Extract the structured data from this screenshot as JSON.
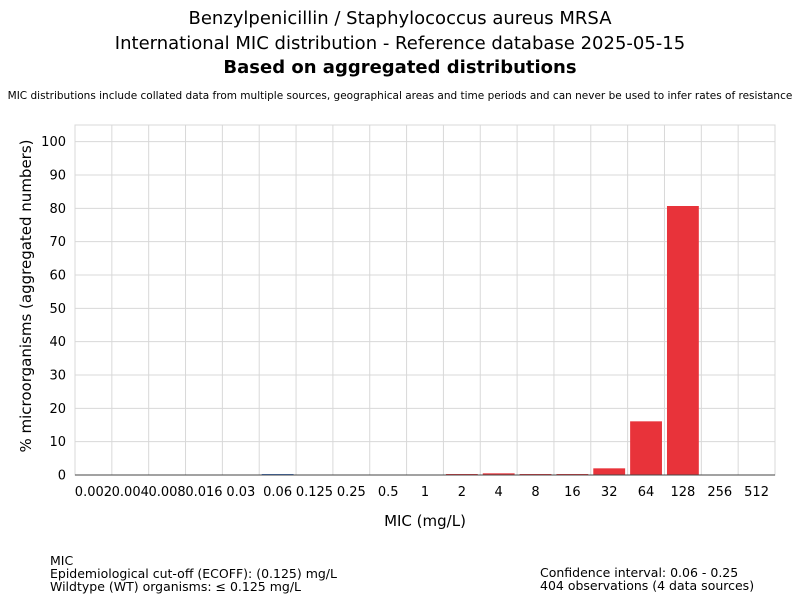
{
  "header": {
    "title_line1": "Benzylpenicillin / Staphylococcus aureus MRSA",
    "title_line2": "International MIC distribution - Reference database 2025-05-15",
    "title_line3": "Based on aggregated distributions",
    "note": "MIC distributions include collated data from multiple sources, geographical areas and time periods and can never be used to infer rates of resistance"
  },
  "footer": {
    "left": {
      "line1": "MIC",
      "line2": "Epidemiological cut-off (ECOFF): (0.125) mg/L",
      "line3": "Wildtype (WT) organisms: ≤ 0.125 mg/L"
    },
    "right": {
      "line1": "Confidence interval: 0.06 - 0.25",
      "line2": "404 observations (4 data sources)"
    }
  },
  "chart_data": {
    "type": "bar",
    "xlabel": "MIC (mg/L)",
    "ylabel": "% microorganisms (aggregated numbers)",
    "ylim": [
      0,
      105
    ],
    "yticks": [
      0,
      10,
      20,
      30,
      40,
      50,
      60,
      70,
      80,
      90,
      100
    ],
    "grid": true,
    "categories": [
      "0.002",
      "0.004",
      "0.008",
      "0.016",
      "0.03",
      "0.06",
      "0.125",
      "0.25",
      "0.5",
      "1",
      "2",
      "4",
      "8",
      "16",
      "32",
      "64",
      "128",
      "256",
      "512"
    ],
    "values": [
      0,
      0,
      0,
      0,
      0,
      0.25,
      0,
      0,
      0,
      0,
      0.25,
      0.5,
      0.25,
      0.25,
      2.0,
      16.1,
      80.7,
      0,
      0
    ],
    "colors": {
      "wildtype": "#3a6fc4",
      "non_wildtype": "#e8333a",
      "grid": "#d8d8d8",
      "axis": "#999999"
    },
    "wildtype_max_index": 6
  }
}
